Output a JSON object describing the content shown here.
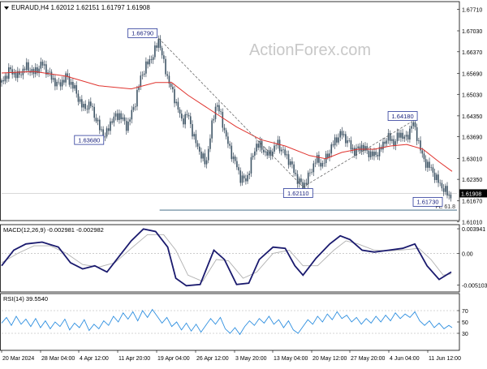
{
  "chart_data": [
    {
      "type": "candlestick",
      "header": {
        "symbol": "EURAUD,H4",
        "open": "1.62012",
        "high": "1.62151",
        "low": "1.61797",
        "close": "1.61908"
      },
      "watermark": "ActionForex.com",
      "ylim": [
        1.6105,
        1.6795
      ],
      "y_ticks": [
        "1.67710",
        "1.67030",
        "1.66370",
        "1.65690",
        "1.65030",
        "1.64350",
        "1.63690",
        "1.63010",
        "1.62350",
        "1.61670",
        "1.61010"
      ],
      "y_tick_values": [
        1.6771,
        1.6703,
        1.6637,
        1.6569,
        1.6503,
        1.6435,
        1.6369,
        1.6301,
        1.6235,
        1.6167,
        1.6101
      ],
      "last_price": "1.61908",
      "last_price_value": 1.61908,
      "price_path": [
        [
          0,
          1.654
        ],
        [
          10,
          1.658
        ],
        [
          20,
          1.656
        ],
        [
          30,
          1.659
        ],
        [
          40,
          1.657
        ],
        [
          50,
          1.66
        ],
        [
          60,
          1.656
        ],
        [
          70,
          1.653
        ],
        [
          80,
          1.656
        ],
        [
          90,
          1.652
        ],
        [
          100,
          1.646
        ],
        [
          110,
          1.647
        ],
        [
          120,
          1.64
        ],
        [
          128,
          1.6368
        ],
        [
          135,
          1.642
        ],
        [
          145,
          1.644
        ],
        [
          155,
          1.64
        ],
        [
          165,
          1.648
        ],
        [
          172,
          1.656
        ],
        [
          180,
          1.66
        ],
        [
          188,
          1.663
        ],
        [
          194,
          1.6679
        ],
        [
          200,
          1.66
        ],
        [
          208,
          1.653
        ],
        [
          215,
          1.648
        ],
        [
          222,
          1.642
        ],
        [
          230,
          1.644
        ],
        [
          238,
          1.636
        ],
        [
          245,
          1.632
        ],
        [
          252,
          1.628
        ],
        [
          258,
          1.638
        ],
        [
          265,
          1.648
        ],
        [
          272,
          1.642
        ],
        [
          280,
          1.634
        ],
        [
          288,
          1.629
        ],
        [
          295,
          1.624
        ],
        [
          302,
          1.623
        ],
        [
          308,
          1.629
        ],
        [
          315,
          1.635
        ],
        [
          322,
          1.633
        ],
        [
          330,
          1.631
        ],
        [
          340,
          1.635
        ],
        [
          348,
          1.632
        ],
        [
          356,
          1.629
        ],
        [
          364,
          1.624
        ],
        [
          372,
          1.6211
        ],
        [
          380,
          1.625
        ],
        [
          388,
          1.63
        ],
        [
          396,
          1.628
        ],
        [
          404,
          1.632
        ],
        [
          412,
          1.636
        ],
        [
          420,
          1.638
        ],
        [
          428,
          1.635
        ],
        [
          436,
          1.632
        ],
        [
          444,
          1.634
        ],
        [
          452,
          1.632
        ],
        [
          460,
          1.631
        ],
        [
          468,
          1.633
        ],
        [
          476,
          1.637
        ],
        [
          484,
          1.635
        ],
        [
          492,
          1.638
        ],
        [
          500,
          1.636
        ],
        [
          507,
          1.6418
        ],
        [
          514,
          1.636
        ],
        [
          520,
          1.63
        ],
        [
          526,
          1.628
        ],
        [
          532,
          1.626
        ],
        [
          538,
          1.623
        ],
        [
          544,
          1.621
        ],
        [
          550,
          1.619
        ],
        [
          555,
          1.618
        ]
      ],
      "ma_path": [
        [
          0,
          1.657
        ],
        [
          40,
          1.6575
        ],
        [
          80,
          1.656
        ],
        [
          120,
          1.653
        ],
        [
          160,
          1.652
        ],
        [
          190,
          1.654
        ],
        [
          210,
          1.654
        ],
        [
          230,
          1.65
        ],
        [
          260,
          1.645
        ],
        [
          290,
          1.64
        ],
        [
          320,
          1.636
        ],
        [
          350,
          1.634
        ],
        [
          380,
          1.631
        ],
        [
          400,
          1.63
        ],
        [
          420,
          1.632
        ],
        [
          440,
          1.633
        ],
        [
          460,
          1.633
        ],
        [
          480,
          1.634
        ],
        [
          500,
          1.6345
        ],
        [
          520,
          1.633
        ],
        [
          540,
          1.629
        ],
        [
          556,
          1.626
        ]
      ],
      "levels": [
        {
          "label": "1.66790",
          "x": 194,
          "value": 1.6679
        },
        {
          "label": "1.63680",
          "x": 128,
          "value": 1.6368
        },
        {
          "label": "1.62110",
          "x": 372,
          "value": 1.6211
        },
        {
          "label": "1.64180",
          "x": 507,
          "value": 1.6418
        },
        {
          "label": "1.61730",
          "x": 548,
          "value": 1.6173
        }
      ],
      "trendlines": [
        {
          "from": [
            194,
            1.6679
          ],
          "to": [
            372,
            1.6211
          ]
        },
        {
          "from": [
            372,
            1.6211
          ],
          "to": [
            507,
            1.6418
          ]
        }
      ],
      "fe_line": {
        "label": "FE 61.8",
        "value": 1.6138,
        "x_start": 195
      }
    },
    {
      "type": "line",
      "label": "MACD(12,26,9) -0.002981 -0.002982",
      "ylim": [
        -0.0062,
        0.0046
      ],
      "y_ticks": [
        "0.003941",
        "0.00",
        "-0.005103"
      ],
      "y_tick_values": [
        0.003941,
        0.0,
        -0.005103
      ],
      "series": [
        {
          "name": "MACD",
          "values": [
            [
              0,
              -0.002
            ],
            [
              15,
              0.0005
            ],
            [
              30,
              0.0015
            ],
            [
              50,
              0.0018
            ],
            [
              70,
              0.001
            ],
            [
              85,
              -0.0015
            ],
            [
              100,
              -0.0025
            ],
            [
              115,
              -0.002
            ],
            [
              130,
              -0.003
            ],
            [
              145,
              -0.0005
            ],
            [
              160,
              0.002
            ],
            [
              175,
              0.0039
            ],
            [
              190,
              0.0035
            ],
            [
              205,
              0.001
            ],
            [
              215,
              -0.004
            ],
            [
              228,
              -0.0052
            ],
            [
              245,
              -0.005
            ],
            [
              262,
              0.0005
            ],
            [
              275,
              -0.001
            ],
            [
              290,
              -0.005
            ],
            [
              305,
              -0.0048
            ],
            [
              318,
              -0.001
            ],
            [
              335,
              0.001
            ],
            [
              350,
              0.0008
            ],
            [
              362,
              -0.002
            ],
            [
              372,
              -0.0035
            ],
            [
              388,
              -0.0008
            ],
            [
              405,
              0.0015
            ],
            [
              418,
              0.0028
            ],
            [
              430,
              0.0022
            ],
            [
              445,
              0.0005
            ],
            [
              460,
              0.0002
            ],
            [
              478,
              0.0005
            ],
            [
              495,
              0.0008
            ],
            [
              510,
              0.0015
            ],
            [
              525,
              -0.002
            ],
            [
              540,
              -0.0042
            ],
            [
              555,
              -0.003
            ]
          ]
        },
        {
          "name": "Signal",
          "values": [
            [
              0,
              -0.0015
            ],
            [
              20,
              0.0
            ],
            [
              40,
              0.0012
            ],
            [
              60,
              0.0012
            ],
            [
              80,
              0.0
            ],
            [
              100,
              -0.0018
            ],
            [
              120,
              -0.0022
            ],
            [
              140,
              -0.0015
            ],
            [
              160,
              0.0008
            ],
            [
              180,
              0.003
            ],
            [
              200,
              0.003
            ],
            [
              215,
              0.0005
            ],
            [
              230,
              -0.0035
            ],
            [
              248,
              -0.0045
            ],
            [
              265,
              -0.001
            ],
            [
              280,
              -0.0012
            ],
            [
              298,
              -0.004
            ],
            [
              315,
              -0.003
            ],
            [
              335,
              0.0
            ],
            [
              355,
              0.0005
            ],
            [
              372,
              -0.002
            ],
            [
              390,
              -0.002
            ],
            [
              410,
              0.0005
            ],
            [
              425,
              0.002
            ],
            [
              440,
              0.0015
            ],
            [
              460,
              0.0005
            ],
            [
              480,
              0.0004
            ],
            [
              500,
              0.0006
            ],
            [
              515,
              0.0008
            ],
            [
              530,
              -0.001
            ],
            [
              545,
              -0.0035
            ],
            [
              555,
              -0.0033
            ]
          ]
        }
      ]
    },
    {
      "type": "line",
      "label": "RSI(14) 39.5540",
      "ylim": [
        0,
        100
      ],
      "y_ticks": [
        "70",
        "50",
        "30"
      ],
      "y_tick_values": [
        70,
        50,
        30
      ],
      "series": [
        {
          "name": "RSI",
          "values": [
            [
              0,
              48
            ],
            [
              6,
              58
            ],
            [
              12,
              44
            ],
            [
              18,
              60
            ],
            [
              24,
              46
            ],
            [
              30,
              55
            ],
            [
              36,
              42
            ],
            [
              42,
              56
            ],
            [
              48,
              40
            ],
            [
              54,
              52
            ],
            [
              60,
              38
            ],
            [
              66,
              50
            ],
            [
              72,
              42
            ],
            [
              78,
              55
            ],
            [
              84,
              36
            ],
            [
              90,
              48
            ],
            [
              96,
              40
            ],
            [
              102,
              54
            ],
            [
              108,
              35
            ],
            [
              114,
              46
            ],
            [
              120,
              38
            ],
            [
              126,
              52
            ],
            [
              132,
              44
            ],
            [
              138,
              60
            ],
            [
              144,
              50
            ],
            [
              150,
              66
            ],
            [
              156,
              55
            ],
            [
              162,
              68
            ],
            [
              168,
              52
            ],
            [
              174,
              70
            ],
            [
              180,
              58
            ],
            [
              186,
              72
            ],
            [
              192,
              60
            ],
            [
              198,
              48
            ],
            [
              204,
              58
            ],
            [
              210,
              42
            ],
            [
              216,
              50
            ],
            [
              222,
              36
            ],
            [
              228,
              48
            ],
            [
              234,
              34
            ],
            [
              240,
              46
            ],
            [
              246,
              32
            ],
            [
              252,
              44
            ],
            [
              258,
              56
            ],
            [
              264,
              46
            ],
            [
              270,
              58
            ],
            [
              276,
              38
            ],
            [
              282,
              30
            ],
            [
              288,
              40
            ],
            [
              294,
              28
            ],
            [
              300,
              42
            ],
            [
              306,
              52
            ],
            [
              312,
              44
            ],
            [
              318,
              56
            ],
            [
              324,
              48
            ],
            [
              330,
              60
            ],
            [
              336,
              46
            ],
            [
              342,
              54
            ],
            [
              348,
              40
            ],
            [
              354,
              52
            ],
            [
              360,
              36
            ],
            [
              366,
              30
            ],
            [
              372,
              42
            ],
            [
              378,
              54
            ],
            [
              384,
              46
            ],
            [
              390,
              60
            ],
            [
              396,
              50
            ],
            [
              402,
              64
            ],
            [
              408,
              54
            ],
            [
              414,
              68
            ],
            [
              420,
              56
            ],
            [
              426,
              62
            ],
            [
              432,
              50
            ],
            [
              438,
              58
            ],
            [
              444,
              46
            ],
            [
              450,
              56
            ],
            [
              456,
              48
            ],
            [
              462,
              60
            ],
            [
              468,
              50
            ],
            [
              474,
              62
            ],
            [
              480,
              52
            ],
            [
              486,
              66
            ],
            [
              492,
              56
            ],
            [
              498,
              64
            ],
            [
              504,
              58
            ],
            [
              510,
              68
            ],
            [
              516,
              52
            ],
            [
              522,
              44
            ],
            [
              528,
              52
            ],
            [
              534,
              40
            ],
            [
              540,
              48
            ],
            [
              546,
              38
            ],
            [
              552,
              44
            ],
            [
              556,
              40
            ]
          ]
        }
      ]
    }
  ],
  "x_axis": {
    "ticks": [
      "20 Mar 2024",
      "28 Mar 04:00",
      "4 Apr 12:00",
      "11 Apr 20:00",
      "19 Apr 04:00",
      "26 Apr 12:00",
      "3 May 20:00",
      "13 May 04:00",
      "20 May 12:00",
      "27 May 20:00",
      "4 Jun 04:00",
      "11 Jun 12:00"
    ]
  }
}
